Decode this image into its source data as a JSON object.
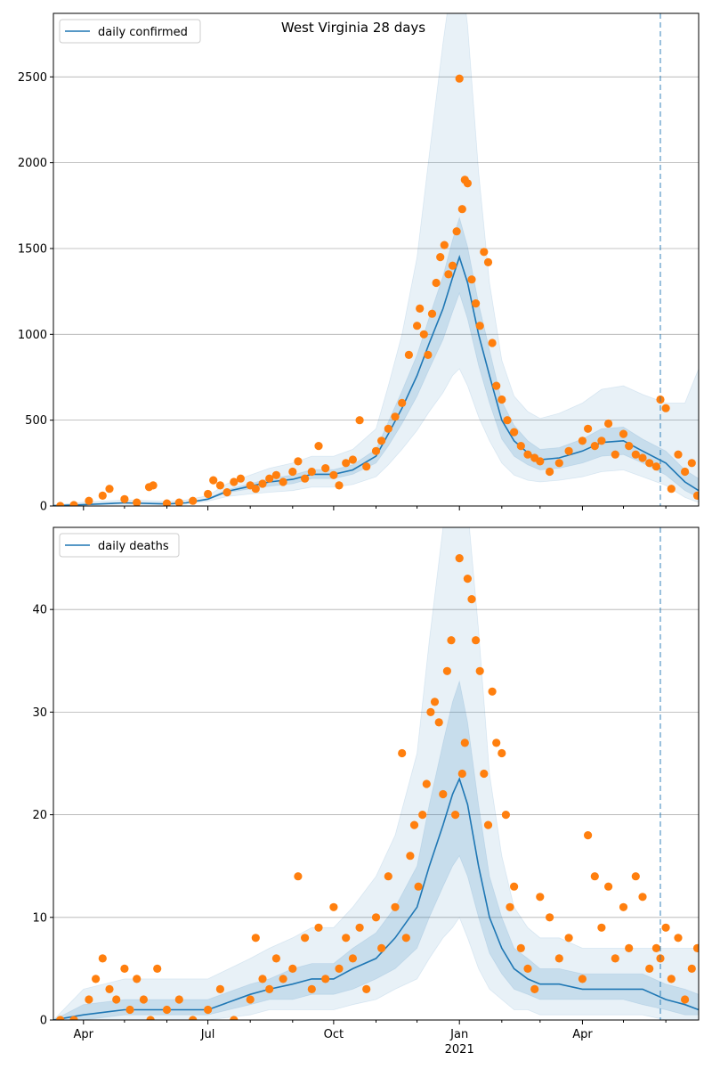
{
  "figure": {
    "title": "West Virginia 28 days"
  },
  "colors": {
    "line": "#1f77b4",
    "points": "#ff7f0e",
    "band": "#1f77b4",
    "grid": "#b0b0b0",
    "vline": "#1f77b4"
  },
  "chart_data": [
    {
      "type": "line",
      "name": "top",
      "legend": {
        "label": "daily confirmed",
        "position": "top-left"
      },
      "x_domain": [
        "2020-03-10",
        "2021-06-25"
      ],
      "ylim": [
        0,
        2870
      ],
      "yticks": [
        0,
        500,
        1000,
        1500,
        2000,
        2500
      ],
      "grid": "y",
      "vline": "2021-05-28",
      "series": [
        {
          "name": "daily confirmed",
          "x": [
            "2020-03-10",
            "2020-04-01",
            "2020-05-01",
            "2020-06-01",
            "2020-06-15",
            "2020-07-01",
            "2020-07-15",
            "2020-08-01",
            "2020-08-15",
            "2020-09-01",
            "2020-09-15",
            "2020-10-01",
            "2020-10-15",
            "2020-11-01",
            "2020-11-10",
            "2020-11-20",
            "2020-12-01",
            "2020-12-10",
            "2020-12-20",
            "2020-12-27",
            "2021-01-01",
            "2021-01-07",
            "2021-01-15",
            "2021-01-23",
            "2021-02-01",
            "2021-02-10",
            "2021-02-20",
            "2021-03-01",
            "2021-03-15",
            "2021-04-01",
            "2021-04-15",
            "2021-05-01",
            "2021-05-15",
            "2021-06-01",
            "2021-06-15",
            "2021-06-25"
          ],
          "y": [
            2,
            8,
            18,
            12,
            18,
            40,
            85,
            115,
            140,
            155,
            185,
            185,
            210,
            290,
            420,
            570,
            760,
            950,
            1150,
            1330,
            1450,
            1300,
            1000,
            760,
            500,
            380,
            310,
            270,
            280,
            320,
            370,
            380,
            320,
            250,
            140,
            90
          ],
          "band_inner": [
            [
              2,
              8,
              18,
              12,
              18,
              38,
              78,
              100,
              115,
              130,
              160,
              160,
              185,
              250,
              350,
              480,
              640,
              800,
              970,
              1130,
              1240,
              1090,
              820,
              600,
              390,
              290,
              240,
              210,
              220,
              250,
              290,
              300,
              250,
              180,
              90,
              50
            ],
            [
              2,
              12,
              22,
              16,
              22,
              44,
              95,
              130,
              160,
              180,
              212,
              212,
              240,
              330,
              490,
              670,
              880,
              1100,
              1340,
              1550,
              1680,
              1510,
              1180,
              910,
              610,
              470,
              380,
              330,
              340,
              390,
              450,
              460,
              390,
              320,
              210,
              160
            ]
          ],
          "band_outer": [
            [
              0,
              4,
              10,
              6,
              10,
              28,
              55,
              70,
              80,
              90,
              110,
              110,
              125,
              170,
              240,
              330,
              440,
              550,
              660,
              760,
              800,
              700,
              520,
              380,
              250,
              180,
              150,
              140,
              150,
              170,
              200,
              210,
              170,
              120,
              50,
              20
            ],
            [
              5,
              22,
              35,
              28,
              35,
              60,
              130,
              180,
              220,
              250,
              290,
              290,
              330,
              450,
              700,
              1000,
              1450,
              2050,
              2700,
              3100,
              3200,
              2800,
              1950,
              1300,
              850,
              640,
              550,
              510,
              540,
              600,
              680,
              700,
              650,
              600,
              600,
              800
            ]
          ]
        }
      ],
      "points": {
        "x": [
          "2020-03-15",
          "2020-03-25",
          "2020-04-05",
          "2020-04-15",
          "2020-04-20",
          "2020-05-01",
          "2020-05-10",
          "2020-05-19",
          "2020-05-22",
          "2020-06-01",
          "2020-06-10",
          "2020-06-20",
          "2020-07-01",
          "2020-07-05",
          "2020-07-10",
          "2020-07-15",
          "2020-07-20",
          "2020-07-25",
          "2020-08-01",
          "2020-08-05",
          "2020-08-10",
          "2020-08-15",
          "2020-08-20",
          "2020-08-25",
          "2020-09-01",
          "2020-09-05",
          "2020-09-10",
          "2020-09-15",
          "2020-09-20",
          "2020-09-25",
          "2020-10-01",
          "2020-10-05",
          "2020-10-10",
          "2020-10-15",
          "2020-10-20",
          "2020-10-25",
          "2020-11-01",
          "2020-11-05",
          "2020-11-10",
          "2020-11-15",
          "2020-11-20",
          "2020-11-25",
          "2020-12-01",
          "2020-12-03",
          "2020-12-06",
          "2020-12-09",
          "2020-12-12",
          "2020-12-15",
          "2020-12-18",
          "2020-12-21",
          "2020-12-24",
          "2020-12-27",
          "2020-12-30",
          "2021-01-01",
          "2021-01-03",
          "2021-01-05",
          "2021-01-07",
          "2021-01-10",
          "2021-01-13",
          "2021-01-16",
          "2021-01-19",
          "2021-01-22",
          "2021-01-25",
          "2021-01-28",
          "2021-02-01",
          "2021-02-05",
          "2021-02-10",
          "2021-02-15",
          "2021-02-20",
          "2021-02-25",
          "2021-03-01",
          "2021-03-08",
          "2021-03-15",
          "2021-03-22",
          "2021-04-01",
          "2021-04-05",
          "2021-04-10",
          "2021-04-15",
          "2021-04-20",
          "2021-04-25",
          "2021-05-01",
          "2021-05-05",
          "2021-05-10",
          "2021-05-15",
          "2021-05-20",
          "2021-05-25",
          "2021-05-28",
          "2021-06-01",
          "2021-06-05",
          "2021-06-10",
          "2021-06-15",
          "2021-06-20",
          "2021-06-24"
        ],
        "y": [
          0,
          5,
          30,
          60,
          100,
          40,
          20,
          110,
          120,
          15,
          20,
          30,
          70,
          150,
          120,
          80,
          140,
          160,
          120,
          100,
          130,
          160,
          180,
          140,
          200,
          260,
          160,
          200,
          350,
          220,
          180,
          120,
          250,
          270,
          500,
          230,
          320,
          380,
          450,
          520,
          600,
          880,
          1050,
          1150,
          1000,
          880,
          1120,
          1300,
          1450,
          1520,
          1350,
          1400,
          1600,
          2490,
          1730,
          1900,
          1880,
          1320,
          1180,
          1050,
          1480,
          1420,
          950,
          700,
          620,
          500,
          430,
          350,
          300,
          280,
          260,
          200,
          250,
          320,
          380,
          450,
          350,
          380,
          480,
          300,
          420,
          350,
          300,
          280,
          250,
          230,
          620,
          570,
          100,
          300,
          200,
          250,
          60
        ]
      }
    },
    {
      "type": "line",
      "name": "bottom",
      "legend": {
        "label": "daily deaths",
        "position": "top-left"
      },
      "x_domain": [
        "2020-03-10",
        "2021-06-25"
      ],
      "ylim": [
        0,
        48
      ],
      "yticks": [
        0,
        10,
        20,
        30,
        40
      ],
      "xticks": [
        "Apr",
        "Jul",
        "Oct",
        "Jan",
        "Apr"
      ],
      "xtick_dates": [
        "2020-04-01",
        "2020-07-01",
        "2020-10-01",
        "2021-01-01",
        "2021-04-01"
      ],
      "year_label": "2021",
      "grid": "y",
      "vline": "2021-05-28",
      "series": [
        {
          "name": "daily deaths",
          "x": [
            "2020-03-10",
            "2020-04-01",
            "2020-05-01",
            "2020-06-01",
            "2020-07-01",
            "2020-08-01",
            "2020-08-15",
            "2020-09-01",
            "2020-09-15",
            "2020-10-01",
            "2020-10-15",
            "2020-11-01",
            "2020-11-15",
            "2020-12-01",
            "2020-12-10",
            "2020-12-20",
            "2020-12-27",
            "2021-01-01",
            "2021-01-07",
            "2021-01-15",
            "2021-01-23",
            "2021-02-01",
            "2021-02-10",
            "2021-02-20",
            "2021-03-01",
            "2021-03-15",
            "2021-04-01",
            "2021-04-15",
            "2021-05-01",
            "2021-05-15",
            "2021-06-01",
            "2021-06-15",
            "2021-06-25"
          ],
          "y": [
            0,
            0.5,
            1,
            1,
            1,
            2.5,
            3,
            3.5,
            4,
            4,
            5,
            6,
            8,
            11,
            15,
            19,
            22,
            23.5,
            21,
            15,
            10,
            7,
            5,
            4,
            3.5,
            3.5,
            3,
            3,
            3,
            3,
            2,
            1.5,
            1
          ],
          "band_inner": [
            [
              0,
              0,
              0.5,
              0.5,
              0.5,
              1.5,
              2,
              2,
              2.5,
              2.5,
              3,
              4,
              5,
              7,
              10,
              13,
              15,
              16,
              14,
              10,
              6.5,
              4.5,
              3,
              2.5,
              2,
              2,
              2,
              2,
              2,
              1.5,
              1,
              0.5,
              0.5
            ],
            [
              0,
              1.5,
              2,
              2,
              2,
              3.5,
              4,
              5,
              5.5,
              5.5,
              7,
              8.5,
              11,
              15,
              21,
              27,
              31,
              33,
              29,
              21,
              14,
              10,
              7,
              6,
              5,
              5,
              4.5,
              4.5,
              4.5,
              4.5,
              3.5,
              3,
              2.5
            ]
          ],
          "band_outer": [
            [
              0,
              0,
              0,
              0,
              0,
              0.5,
              1,
              1,
              1,
              1,
              1.5,
              2,
              3,
              4,
              6,
              8,
              9,
              10,
              8,
              5,
              3,
              2,
              1,
              1,
              0.5,
              0.5,
              0.5,
              0.5,
              0.5,
              0.5,
              0,
              0,
              0
            ],
            [
              0,
              3,
              4,
              4,
              4,
              6,
              7,
              8,
              9,
              9,
              11,
              14,
              18,
              26,
              37,
              48,
              52,
              54,
              50,
              38,
              24,
              16,
              11,
              9,
              8,
              8,
              7,
              7,
              7,
              7,
              7,
              7,
              7
            ]
          ]
        }
      ],
      "points": {
        "x": [
          "2020-03-15",
          "2020-03-25",
          "2020-04-05",
          "2020-04-10",
          "2020-04-15",
          "2020-04-20",
          "2020-04-25",
          "2020-05-01",
          "2020-05-05",
          "2020-05-10",
          "2020-05-15",
          "2020-05-20",
          "2020-05-25",
          "2020-06-01",
          "2020-06-10",
          "2020-06-20",
          "2020-07-01",
          "2020-07-10",
          "2020-07-20",
          "2020-08-01",
          "2020-08-05",
          "2020-08-10",
          "2020-08-15",
          "2020-08-20",
          "2020-08-25",
          "2020-09-01",
          "2020-09-05",
          "2020-09-10",
          "2020-09-15",
          "2020-09-20",
          "2020-09-25",
          "2020-10-01",
          "2020-10-05",
          "2020-10-10",
          "2020-10-15",
          "2020-10-20",
          "2020-10-25",
          "2020-11-01",
          "2020-11-05",
          "2020-11-10",
          "2020-11-15",
          "2020-11-20",
          "2020-11-23",
          "2020-11-26",
          "2020-11-29",
          "2020-12-02",
          "2020-12-05",
          "2020-12-08",
          "2020-12-11",
          "2020-12-14",
          "2020-12-17",
          "2020-12-20",
          "2020-12-23",
          "2020-12-26",
          "2020-12-29",
          "2021-01-01",
          "2021-01-03",
          "2021-01-05",
          "2021-01-07",
          "2021-01-10",
          "2021-01-13",
          "2021-01-16",
          "2021-01-19",
          "2021-01-22",
          "2021-01-25",
          "2021-01-28",
          "2021-02-01",
          "2021-02-04",
          "2021-02-07",
          "2021-02-10",
          "2021-02-15",
          "2021-02-20",
          "2021-02-25",
          "2021-03-01",
          "2021-03-08",
          "2021-03-15",
          "2021-03-22",
          "2021-04-01",
          "2021-04-05",
          "2021-04-10",
          "2021-04-15",
          "2021-04-20",
          "2021-04-25",
          "2021-05-01",
          "2021-05-05",
          "2021-05-10",
          "2021-05-15",
          "2021-05-20",
          "2021-05-25",
          "2021-05-28",
          "2021-06-01",
          "2021-06-05",
          "2021-06-10",
          "2021-06-15",
          "2021-06-20",
          "2021-06-24"
        ],
        "y": [
          0,
          0,
          2,
          4,
          6,
          3,
          2,
          5,
          1,
          4,
          2,
          0,
          5,
          1,
          2,
          0,
          1,
          3,
          0,
          2,
          8,
          4,
          3,
          6,
          4,
          5,
          14,
          8,
          3,
          9,
          4,
          11,
          5,
          8,
          6,
          9,
          3,
          10,
          7,
          14,
          11,
          26,
          8,
          16,
          19,
          13,
          20,
          23,
          30,
          31,
          29,
          22,
          34,
          37,
          20,
          45,
          24,
          27,
          43,
          41,
          37,
          34,
          24,
          19,
          32,
          27,
          26,
          20,
          11,
          13,
          7,
          5,
          3,
          12,
          10,
          6,
          8,
          4,
          18,
          14,
          9,
          13,
          6,
          11,
          7,
          14,
          12,
          5,
          7,
          6,
          9,
          4,
          8,
          2,
          5,
          7
        ]
      }
    }
  ]
}
